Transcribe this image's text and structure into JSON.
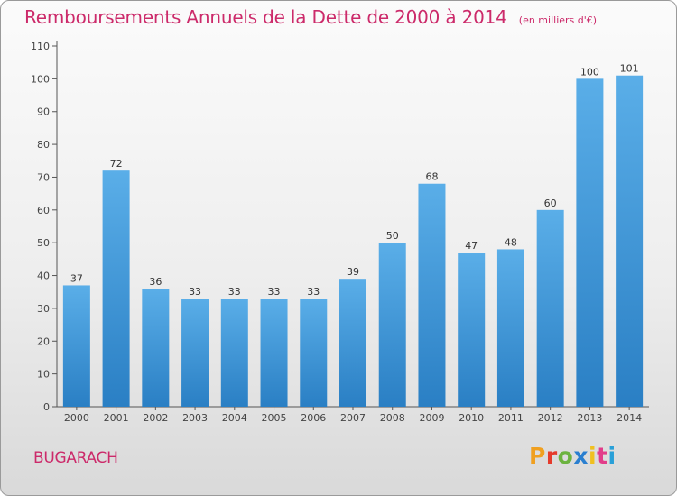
{
  "header": {
    "title": "Remboursements Annuels de la Dette de 2000 à 2014",
    "unit": "(en milliers d'€)"
  },
  "footer": {
    "commune": "BUGARACH",
    "brand": "Proxiti",
    "brand_colors": [
      "#f0a020",
      "#e53b2c",
      "#6cb33f",
      "#2a7fd0",
      "#f0c020",
      "#e23d8a",
      "#2aa0d8"
    ]
  },
  "colors": {
    "bar_top": "#5aaee8",
    "bar_bottom": "#2a7fc4",
    "title": "#cc2a6a",
    "axis": "#555555"
  },
  "chart_data": {
    "type": "bar",
    "title": "Remboursements Annuels de la Dette de 2000 à 2014",
    "subtitle": "(en milliers d'€)",
    "xlabel": "",
    "ylabel": "",
    "categories": [
      "2000",
      "2001",
      "2002",
      "2003",
      "2004",
      "2005",
      "2006",
      "2007",
      "2008",
      "2009",
      "2010",
      "2011",
      "2012",
      "2013",
      "2014"
    ],
    "values": [
      37,
      72,
      36,
      33,
      33,
      33,
      33,
      39,
      50,
      68,
      47,
      48,
      60,
      100,
      101
    ],
    "ylim": [
      0,
      110
    ],
    "yticks": [
      0,
      10,
      20,
      30,
      40,
      50,
      60,
      70,
      80,
      90,
      100,
      110
    ],
    "grid": false,
    "legend": "none"
  }
}
